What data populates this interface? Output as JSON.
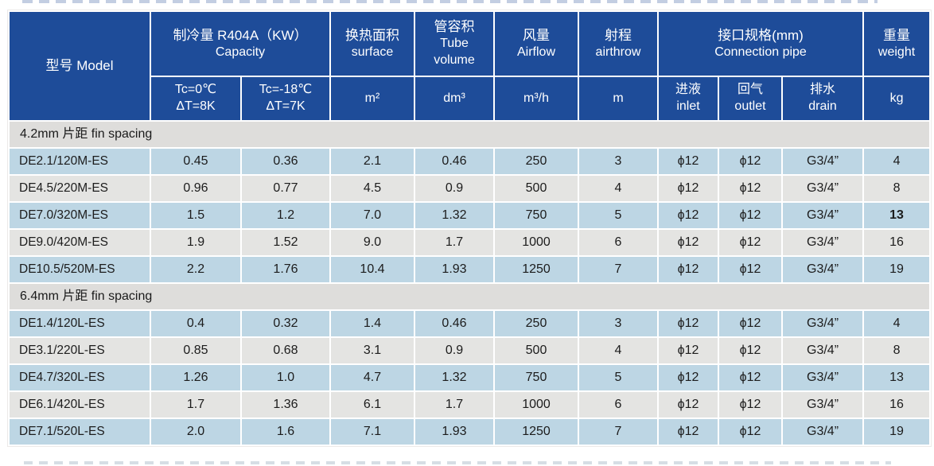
{
  "table": {
    "colors": {
      "header_bg": "#1e4c99",
      "row_blue": "#bdd6e4",
      "row_gray": "#e4e4e2",
      "section_bg": "#dedddb"
    },
    "header_row1": {
      "model": "型号 Model",
      "capacity": {
        "zh": "制冷量 R404A（KW）",
        "en": "Capacity"
      },
      "surface": {
        "zh": "换热面积",
        "en": "surface"
      },
      "tube": {
        "zh": "管容积",
        "en": "Tube",
        "en2": "volume"
      },
      "airflow": {
        "zh": "风量",
        "en": "Airflow"
      },
      "airthrow": {
        "zh": "射程",
        "en": "airthrow"
      },
      "connection": {
        "zh": "接口规格(mm)",
        "en": "Connection pipe"
      },
      "weight": {
        "zh": "重量",
        "en": "weight"
      }
    },
    "header_row2": {
      "tc0": {
        "line1": "Tc=0℃",
        "line2": "ΔT=8K"
      },
      "tc18": {
        "line1": "Tc=-18℃",
        "line2": "ΔT=7K"
      },
      "surface_unit": "m²",
      "tube_unit": "dm³",
      "airflow_unit": "m³/h",
      "airthrow_unit": "m",
      "inlet": {
        "zh": "进液",
        "en": "inlet"
      },
      "outlet": {
        "zh": "回气",
        "en": "outlet"
      },
      "drain": {
        "zh": "排水",
        "en": "drain"
      },
      "weight_unit": "kg"
    },
    "sections": [
      {
        "label": "4.2mm 片距  fin spacing",
        "rows": [
          {
            "model": "DE2.1/120M-ES",
            "tc0": "0.45",
            "tc18": "0.36",
            "surface": "2.1",
            "tube": "0.46",
            "airflow": "250",
            "airthrow": "3",
            "inlet": "ϕ12",
            "outlet": "ϕ12",
            "drain": "G3/4”",
            "weight": "4"
          },
          {
            "model": "DE4.5/220M-ES",
            "tc0": "0.96",
            "tc18": "0.77",
            "surface": "4.5",
            "tube": "0.9",
            "airflow": "500",
            "airthrow": "4",
            "inlet": "ϕ12",
            "outlet": "ϕ12",
            "drain": "G3/4”",
            "weight": "8"
          },
          {
            "model": "DE7.0/320M-ES",
            "tc0": "1.5",
            "tc18": "1.2",
            "surface": "7.0",
            "tube": "1.32",
            "airflow": "750",
            "airthrow": "5",
            "inlet": "ϕ12",
            "outlet": "ϕ12",
            "drain": "G3/4”",
            "weight": "13",
            "weight_bold": true
          },
          {
            "model": "DE9.0/420M-ES",
            "tc0": "1.9",
            "tc18": "1.52",
            "surface": "9.0",
            "tube": "1.7",
            "airflow": "1000",
            "airthrow": "6",
            "inlet": "ϕ12",
            "outlet": "ϕ12",
            "drain": "G3/4”",
            "weight": "16"
          },
          {
            "model": "DE10.5/520M-ES",
            "tc0": "2.2",
            "tc18": "1.76",
            "surface": "10.4",
            "tube": "1.93",
            "airflow": "1250",
            "airthrow": "7",
            "inlet": "ϕ12",
            "outlet": "ϕ12",
            "drain": "G3/4”",
            "weight": "19"
          }
        ]
      },
      {
        "label": "6.4mm 片距 fin spacing",
        "rows": [
          {
            "model": "DE1.4/120L-ES",
            "tc0": "0.4",
            "tc18": "0.32",
            "surface": "1.4",
            "tube": "0.46",
            "airflow": "250",
            "airthrow": "3",
            "inlet": "ϕ12",
            "outlet": "ϕ12",
            "drain": "G3/4”",
            "weight": "4"
          },
          {
            "model": "DE3.1/220L-ES",
            "tc0": "0.85",
            "tc18": "0.68",
            "surface": "3.1",
            "tube": "0.9",
            "airflow": "500",
            "airthrow": "4",
            "inlet": "ϕ12",
            "outlet": "ϕ12",
            "drain": "G3/4”",
            "weight": "8"
          },
          {
            "model": "DE4.7/320L-ES",
            "tc0": "1.26",
            "tc18": "1.0",
            "surface": "4.7",
            "tube": "1.32",
            "airflow": "750",
            "airthrow": "5",
            "inlet": "ϕ12",
            "outlet": "ϕ12",
            "drain": "G3/4”",
            "weight": "13"
          },
          {
            "model": "DE6.1/420L-ES",
            "tc0": "1.7",
            "tc18": "1.36",
            "surface": "6.1",
            "tube": "1.7",
            "airflow": "1000",
            "airthrow": "6",
            "inlet": "ϕ12",
            "outlet": "ϕ12",
            "drain": "G3/4”",
            "weight": "16"
          },
          {
            "model": "DE7.1/520L-ES",
            "tc0": "2.0",
            "tc18": "1.6",
            "surface": "7.1",
            "tube": "1.93",
            "airflow": "1250",
            "airthrow": "7",
            "inlet": "ϕ12",
            "outlet": "ϕ12",
            "drain": "G3/4”",
            "weight": "19"
          }
        ]
      }
    ]
  }
}
